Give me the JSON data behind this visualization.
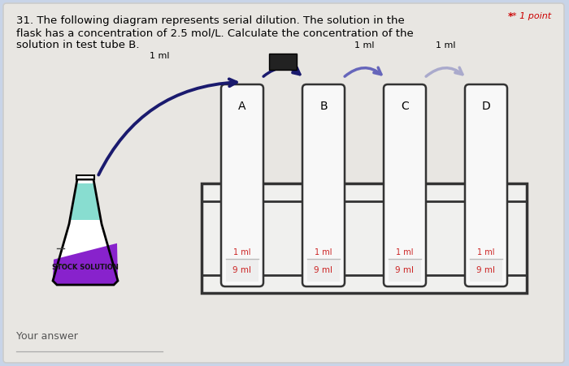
{
  "bg_color": "#c8d4e8",
  "card_color": "#e8e6e2",
  "title_line1": "31. The following diagram represents serial dilution. The solution in the",
  "title_line2": "flask has a concentration of 2.5 mol/L. Calculate the concentration of the",
  "title_line3": "solution in test tube B.",
  "point_text": "* 1 point",
  "your_answer": "Your answer",
  "flask_liquid_top_color": "#88ddd0",
  "flask_liquid_bottom_color": "#8822cc",
  "tube_labels": [
    "A",
    "B",
    "C",
    "D"
  ],
  "font_size_body": 9.5,
  "dark_arrow_color": "#1a1a6e",
  "medium_arrow_color": "#6666bb",
  "light_arrow_color": "#aaaacc",
  "red_text_color": "#cc2222",
  "rack_color": "#f0f0ee",
  "tube_color": "#f8f8f8"
}
